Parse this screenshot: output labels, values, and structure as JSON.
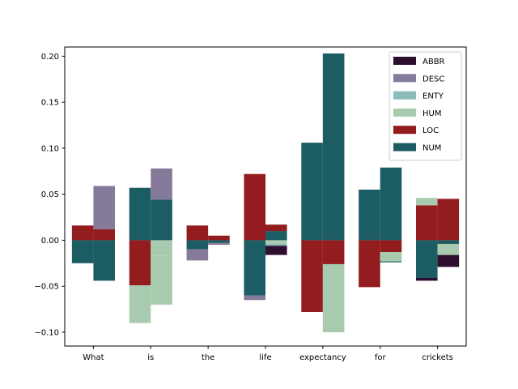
{
  "chart_data": {
    "type": "bar",
    "categories": [
      "What",
      "is",
      "the",
      "life",
      "expectancy",
      "for",
      "crickets"
    ],
    "yticks": [
      "−0.10",
      "−0.05",
      "0.00",
      "0.05",
      "0.10",
      "0.15",
      "0.20"
    ],
    "ytick_values": [
      -0.1,
      -0.05,
      0.0,
      0.05,
      0.1,
      0.15,
      0.2
    ],
    "ylim": [
      -0.115,
      0.21
    ],
    "legend_position": "top-right",
    "series_order": [
      "ABBR",
      "DESC",
      "ENTY",
      "HUM",
      "LOC",
      "NUM"
    ],
    "colors": {
      "ABBR": "#2e0f2f",
      "DESC": "#857a9a",
      "ENTY": "#8cbcb9",
      "HUM": "#a8cbb0",
      "LOC": "#931c1f",
      "NUM": "#1c5c63"
    },
    "groups": [
      {
        "left": [
          {
            "label": "LOC",
            "value": 0.016
          },
          {
            "label": "NUM",
            "value": -0.025
          }
        ],
        "right": [
          {
            "label": "LOC",
            "value": 0.012
          },
          {
            "label": "DESC",
            "value": 0.047
          },
          {
            "label": "NUM",
            "value": -0.044
          }
        ]
      },
      {
        "left": [
          {
            "label": "NUM",
            "value": 0.057
          },
          {
            "label": "LOC",
            "value": -0.049
          },
          {
            "label": "HUM",
            "value": -0.041
          }
        ],
        "right": [
          {
            "label": "NUM",
            "value": 0.044
          },
          {
            "label": "DESC",
            "value": 0.034
          },
          {
            "label": "HUM",
            "value": -0.017
          },
          {
            "label": "LOC",
            "value": 0.0
          },
          {
            "label": "HUM",
            "value": -0.053
          }
        ]
      },
      {
        "left": [
          {
            "label": "LOC",
            "value": 0.016
          },
          {
            "label": "NUM",
            "value": -0.01
          },
          {
            "label": "DESC",
            "value": -0.012
          }
        ],
        "right": [
          {
            "label": "LOC",
            "value": 0.005
          },
          {
            "label": "NUM",
            "value": -0.003
          },
          {
            "label": "DESC",
            "value": -0.002
          }
        ]
      },
      {
        "left": [
          {
            "label": "LOC",
            "value": 0.072
          },
          {
            "label": "NUM",
            "value": -0.06
          },
          {
            "label": "DESC",
            "value": -0.005
          }
        ],
        "right": [
          {
            "label": "NUM",
            "value": 0.01
          },
          {
            "label": "LOC",
            "value": 0.007
          },
          {
            "label": "HUM",
            "value": -0.004
          },
          {
            "label": "ENTY",
            "value": -0.002
          },
          {
            "label": "ABBR",
            "value": -0.01
          }
        ]
      },
      {
        "left": [
          {
            "label": "NUM",
            "value": 0.106
          },
          {
            "label": "LOC",
            "value": -0.078
          }
        ],
        "right": [
          {
            "label": "NUM",
            "value": 0.203
          },
          {
            "label": "LOC",
            "value": -0.026
          },
          {
            "label": "HUM",
            "value": -0.074
          }
        ]
      },
      {
        "left": [
          {
            "label": "NUM",
            "value": 0.055
          },
          {
            "label": "LOC",
            "value": -0.051
          }
        ],
        "right": [
          {
            "label": "NUM",
            "value": 0.079
          },
          {
            "label": "LOC",
            "value": -0.013
          },
          {
            "label": "HUM",
            "value": -0.01
          },
          {
            "label": "NUM",
            "value": -0.001
          }
        ]
      },
      {
        "left": [
          {
            "label": "LOC",
            "value": 0.038
          },
          {
            "label": "HUM",
            "value": 0.008
          },
          {
            "label": "NUM",
            "value": -0.041
          },
          {
            "label": "ABBR",
            "value": -0.003
          }
        ],
        "right": [
          {
            "label": "LOC",
            "value": 0.045
          },
          {
            "label": "NUM",
            "value": -0.004
          },
          {
            "label": "HUM",
            "value": -0.012
          },
          {
            "label": "ABBR",
            "value": -0.013
          }
        ]
      }
    ]
  }
}
